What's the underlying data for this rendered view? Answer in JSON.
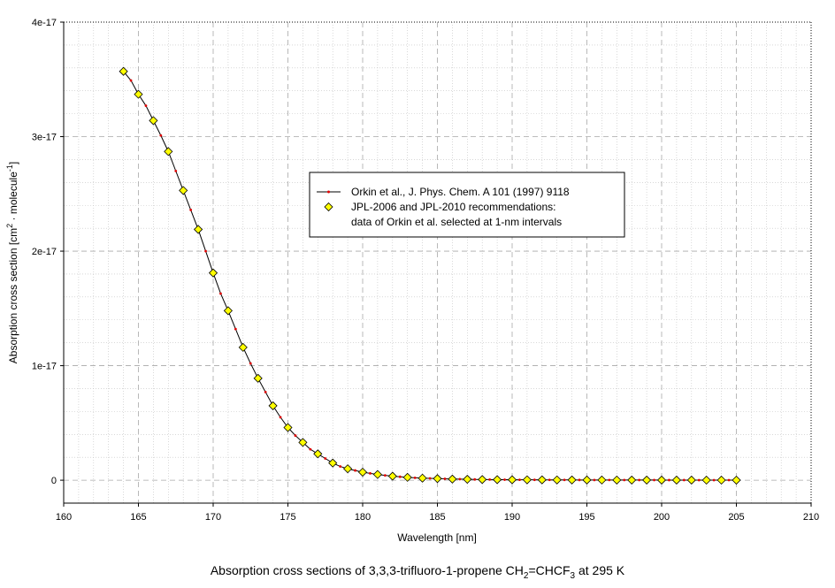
{
  "caption": {
    "prefix": "Absorption cross sections of 3,3,3-trifluoro-1-propene CH",
    "sub1": "2",
    "mid": "=CHCF",
    "sub2": "3",
    "suffix": " at 295 K"
  },
  "colors": {
    "line": "#000000",
    "line_marker": "#e00000",
    "diamond_fill": "#ffff00",
    "diamond_stroke": "#000000",
    "grid": "#c0c0c0"
  },
  "chart_data": {
    "type": "line",
    "xlabel": "Wavelength [nm]",
    "ylabel_prefix": "Absorption cross section [cm",
    "ylabel_sup1": "2",
    "ylabel_mid": " · molecule",
    "ylabel_sup2": "-1",
    "ylabel_suffix": "]",
    "xlim": [
      160,
      210
    ],
    "ylim": [
      -2e-18,
      4e-17
    ],
    "x_ticks": [
      160,
      165,
      170,
      175,
      180,
      185,
      190,
      195,
      200,
      205,
      210
    ],
    "x_tick_labels": [
      "160",
      "165",
      "170",
      "175",
      "180",
      "185",
      "190",
      "195",
      "200",
      "205",
      "210"
    ],
    "y_ticks": [
      0,
      1e-17,
      2e-17,
      3e-17,
      4e-17
    ],
    "y_tick_labels": [
      "0",
      "1e-17",
      "2e-17",
      "3e-17",
      "4e-17"
    ],
    "grid": true,
    "legend_position": "center",
    "series": [
      {
        "name": "Orkin et al., J. Phys. Chem. A 101 (1997) 9118",
        "style": "line-with-small-markers",
        "x": [
          164,
          164.5,
          165,
          165.5,
          166,
          166.5,
          167,
          167.5,
          168,
          168.5,
          169,
          169.5,
          170,
          170.5,
          171,
          171.5,
          172,
          172.5,
          173,
          173.5,
          174,
          174.5,
          175,
          175.5,
          176,
          176.5,
          177,
          177.5,
          178,
          178.5,
          179,
          179.5,
          180,
          180.5,
          181,
          181.5,
          182,
          182.5,
          183,
          183.5,
          184,
          184.5,
          185,
          185.5,
          186,
          186.5,
          187,
          187.5,
          188,
          188.5,
          189,
          189.5,
          190,
          190.5,
          191,
          191.5,
          192,
          192.5,
          193,
          193.5,
          194,
          194.5,
          195,
          195.5,
          196,
          196.5,
          197,
          197.5,
          198,
          198.5,
          199,
          199.5,
          200,
          200.5,
          201,
          201.5,
          202,
          202.5,
          203,
          203.5,
          204,
          204.5,
          205
        ],
        "y": [
          3.57e-17,
          3.49e-17,
          3.37e-17,
          3.27e-17,
          3.14e-17,
          3.01e-17,
          2.87e-17,
          2.7e-17,
          2.53e-17,
          2.36e-17,
          2.19e-17,
          2e-17,
          1.81e-17,
          1.63e-17,
          1.48e-17,
          1.32e-17,
          1.16e-17,
          1.02e-17,
          8.9e-18,
          7.7e-18,
          6.5e-18,
          5.5e-18,
          4.6e-18,
          3.9e-18,
          3.3e-18,
          2.7e-18,
          2.3e-18,
          1.9e-18,
          1.5e-18,
          1.2e-18,
          1e-18,
          8.5e-19,
          7e-19,
          6e-19,
          5e-19,
          4.2e-19,
          3.5e-19,
          3e-19,
          2.5e-19,
          2.1e-19,
          1.8e-19,
          1.6e-19,
          1.4e-19,
          1.2e-19,
          1e-19,
          9e-20,
          8e-20,
          7e-20,
          6e-20,
          5.5e-20,
          5e-20,
          4.5e-20,
          4e-20,
          3.7e-20,
          3.5e-20,
          3.2e-20,
          3e-20,
          2.8e-20,
          2.6e-20,
          2.4e-20,
          2.2e-20,
          2.1e-20,
          2e-20,
          1.9e-20,
          1.8e-20,
          1.7e-20,
          1.6e-20,
          1.5e-20,
          1.4e-20,
          1.35e-20,
          1.3e-20,
          1.25e-20,
          1.2e-20,
          1.15e-20,
          1.1e-20,
          1.05e-20,
          1e-20,
          9.5e-21,
          9e-21,
          8.5e-21,
          8e-21,
          7.5e-21,
          7e-21
        ]
      },
      {
        "name_line1": "JPL-2006 and JPL-2010 recommendations:",
        "name_line2": "data of Orkin et al. selected at 1-nm intervals",
        "style": "diamond-markers",
        "x": [
          164,
          165,
          166,
          167,
          168,
          169,
          170,
          171,
          172,
          173,
          174,
          175,
          176,
          177,
          178,
          179,
          180,
          181,
          182,
          183,
          184,
          185,
          186,
          187,
          188,
          189,
          190,
          191,
          192,
          193,
          194,
          195,
          196,
          197,
          198,
          199,
          200,
          201,
          202,
          203,
          204,
          205
        ],
        "y": [
          3.57e-17,
          3.37e-17,
          3.14e-17,
          2.87e-17,
          2.53e-17,
          2.19e-17,
          1.81e-17,
          1.48e-17,
          1.16e-17,
          8.9e-18,
          6.5e-18,
          4.6e-18,
          3.3e-18,
          2.3e-18,
          1.5e-18,
          1e-18,
          7e-19,
          5e-19,
          3.5e-19,
          2.5e-19,
          1.8e-19,
          1.4e-19,
          1e-19,
          8e-20,
          6e-20,
          5e-20,
          4e-20,
          3.5e-20,
          3e-20,
          2.6e-20,
          2.2e-20,
          2e-20,
          1.8e-20,
          1.6e-20,
          1.4e-20,
          1.3e-20,
          1.2e-20,
          1.1e-20,
          1e-20,
          9e-21,
          8e-21,
          7e-21
        ]
      }
    ]
  }
}
